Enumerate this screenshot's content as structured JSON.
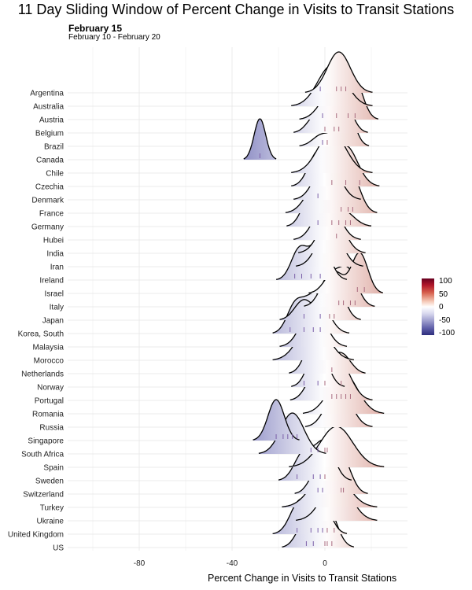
{
  "chart_data": {
    "type": "ridgeline",
    "title": "11 Day Sliding Window of Percent Change in Visits to Transit Stations",
    "subtitle": "February 15",
    "caption": "February 10 - February 20",
    "xlabel": "Percent Change in Visits to Transit Stations",
    "ylabel": "",
    "xlim": [
      -120,
      35
    ],
    "x_ticks": [
      -80,
      -40,
      0
    ],
    "grid": true,
    "legend": {
      "position": "right",
      "scale": "diverging",
      "ticks": [
        100,
        50,
        0,
        -50,
        -100
      ],
      "colors": {
        "high": "#67001f",
        "mid": "#ffffff",
        "low": "#2d2d7d"
      }
    },
    "series": [
      {
        "name": "US",
        "peaks": [
          [
            -9,
            3.5,
            0.55
          ],
          [
            1,
            4,
            1.0
          ]
        ],
        "obs": [
          -8,
          -5,
          0,
          1,
          3
        ]
      },
      {
        "name": "United Kingdom",
        "peaks": [
          [
            -11,
            4,
            0.5
          ],
          [
            -2,
            4,
            0.6
          ]
        ],
        "obs": [
          -12,
          -6,
          -3,
          -1,
          1,
          4
        ]
      },
      {
        "name": "Ukraine",
        "peaks": [
          [
            5,
            6,
            1.0
          ]
        ],
        "obs": []
      },
      {
        "name": "Turkey",
        "peaks": [
          [
            2,
            7,
            1.0
          ]
        ],
        "obs": []
      },
      {
        "name": "Switzerland",
        "peaks": [
          [
            -2,
            4,
            0.6
          ],
          [
            7,
            4,
            0.8
          ]
        ],
        "obs": [
          -3,
          -1,
          7,
          8
        ]
      },
      {
        "name": "Sweden",
        "peaks": [
          [
            -9,
            4,
            0.6
          ],
          [
            0,
            4,
            0.8
          ]
        ],
        "obs": [
          -12,
          -5,
          -2,
          0
        ]
      },
      {
        "name": "Spain",
        "peaks": [
          [
            5,
            7,
            1.0
          ]
        ],
        "obs": []
      },
      {
        "name": "South Africa",
        "peaks": [
          [
            -14,
            5,
            1.0
          ]
        ],
        "obs": [
          -6,
          -3,
          0,
          1
        ]
      },
      {
        "name": "Singapore",
        "peaks": [
          [
            -21,
            3.5,
            0.6
          ]
        ],
        "obs": [
          -21,
          -18,
          -16,
          -14,
          -12
        ]
      },
      {
        "name": "Russia",
        "peaks": [
          [
            6,
            5,
            1.0
          ]
        ],
        "obs": []
      },
      {
        "name": "Romania",
        "peaks": [
          [
            8,
            6,
            1.0
          ]
        ],
        "obs": []
      },
      {
        "name": "Portugal",
        "peaks": [
          [
            -4,
            4,
            0.5
          ],
          [
            6,
            5,
            0.8
          ]
        ],
        "obs": [
          3,
          5,
          7,
          9,
          11
        ]
      },
      {
        "name": "Norway",
        "peaks": [
          [
            -3,
            4,
            0.8
          ]
        ],
        "obs": [
          -9,
          -3,
          0,
          7
        ]
      },
      {
        "name": "Netherlands",
        "peaks": [
          [
            -4,
            4,
            0.9
          ],
          [
            7,
            4,
            0.45
          ]
        ],
        "obs": [
          3
        ]
      },
      {
        "name": "Morocco",
        "peaks": [
          [
            -5,
            6,
            1.0
          ]
        ],
        "obs": []
      },
      {
        "name": "Malaysia",
        "peaks": [
          [
            -5,
            5,
            1.0
          ]
        ],
        "obs": []
      },
      {
        "name": "Korea, South",
        "peaks": [
          [
            -13,
            3.5,
            0.5
          ],
          [
            -4,
            5,
            0.8
          ]
        ],
        "obs": [
          -15,
          -9,
          -5,
          -2
        ]
      },
      {
        "name": "Japan",
        "peaks": [
          [
            -9,
            4,
            0.5
          ],
          [
            4,
            4,
            1.0
          ]
        ],
        "obs": [
          -9,
          -2,
          2,
          4
        ]
      },
      {
        "name": "Italy",
        "peaks": [
          [
            2,
            4,
            0.5
          ],
          [
            10,
            4,
            0.6
          ]
        ],
        "obs": [
          6,
          8,
          11,
          13
        ]
      },
      {
        "name": "Israel",
        "peaks": [
          [
            4,
            4,
            0.3
          ],
          [
            15,
            3.5,
            0.55
          ]
        ],
        "obs": [
          14,
          17
        ]
      },
      {
        "name": "Ireland",
        "peaks": [
          [
            -11,
            3.5,
            0.5
          ],
          [
            -2,
            4,
            0.65
          ]
        ],
        "obs": [
          -13,
          -10,
          -6,
          -2
        ]
      },
      {
        "name": "Iran",
        "peaks": [
          [
            2,
            5,
            1.0
          ]
        ],
        "obs": []
      },
      {
        "name": "India",
        "peaks": [
          [
            3,
            5,
            1.0
          ]
        ],
        "obs": []
      },
      {
        "name": "Hubei",
        "peaks": [
          [
            1,
            5,
            1.0
          ]
        ],
        "obs": [
          5
        ]
      },
      {
        "name": "Germany",
        "peaks": [
          [
            -5,
            4,
            0.8
          ],
          [
            7,
            5,
            0.35
          ]
        ],
        "obs": [
          -3,
          3,
          6,
          9,
          11
        ]
      },
      {
        "name": "France",
        "peaks": [
          [
            -3,
            5,
            0.6
          ],
          [
            11,
            4,
            0.8
          ]
        ],
        "obs": [
          7,
          10,
          12
        ]
      },
      {
        "name": "Denmark",
        "peaks": [
          [
            1,
            5,
            1.0
          ]
        ],
        "obs": [
          -3
        ]
      },
      {
        "name": "Czechia",
        "peaks": [
          [
            -3,
            4,
            0.5
          ],
          [
            9,
            5,
            0.6
          ]
        ],
        "obs": [
          3,
          9,
          15
        ]
      },
      {
        "name": "Chile",
        "peaks": [
          [
            3,
            6,
            1.0
          ]
        ],
        "obs": []
      },
      {
        "name": "Canada",
        "peaks": [
          [
            -28,
            2.5,
            0.42
          ]
        ],
        "obs": [
          -28
        ]
      },
      {
        "name": "Brazil",
        "peaks": [
          [
            -1,
            4,
            0.3
          ],
          [
            9,
            3.5,
            1.0
          ]
        ],
        "obs": [
          -1,
          1
        ]
      },
      {
        "name": "Belgium",
        "peaks": [
          [
            -3,
            4,
            0.45
          ],
          [
            7,
            4,
            0.9
          ]
        ],
        "obs": [
          0,
          4,
          6
        ]
      },
      {
        "name": "Austria",
        "peaks": [
          [
            3,
            5,
            0.6
          ],
          [
            13,
            3.5,
            0.8
          ]
        ],
        "obs": [
          -1,
          5,
          10,
          13
        ]
      },
      {
        "name": "Australia",
        "peaks": [
          [
            3,
            6,
            1.0
          ]
        ],
        "obs": []
      },
      {
        "name": "Argentina",
        "peaks": [
          [
            6,
            5,
            1.0
          ]
        ],
        "obs": [
          -2,
          5,
          7,
          9
        ]
      }
    ]
  }
}
